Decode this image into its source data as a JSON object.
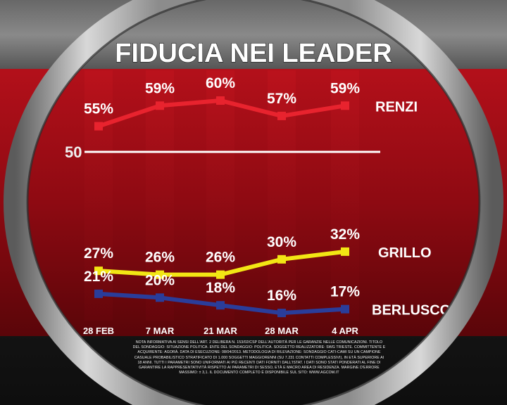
{
  "chart_data": {
    "type": "line",
    "title": "FIDUCIA NEI LEADER",
    "categories": [
      "28 FEB",
      "7 MAR",
      "21 MAR",
      "28 MAR",
      "4 APR"
    ],
    "ylim": [
      0,
      70
    ],
    "reference_line": {
      "value": 50,
      "label": "50"
    },
    "series": [
      {
        "name": "RENZI",
        "values": [
          55,
          59,
          60,
          57,
          59
        ],
        "labels": [
          "55%",
          "59%",
          "60%",
          "57%",
          "59%"
        ],
        "color": "#e8232e"
      },
      {
        "name": "GRILLO",
        "values": [
          27,
          26,
          26,
          30,
          32
        ],
        "labels": [
          "27%",
          "26%",
          "26%",
          "30%",
          "32%"
        ],
        "color": "#f2e614"
      },
      {
        "name": "BERLUSCONI",
        "values": [
          21,
          20,
          18,
          16,
          17
        ],
        "labels": [
          "21%",
          "20%",
          "18%",
          "16%",
          "17%"
        ],
        "color": "#2a3d9a"
      }
    ]
  },
  "footnote": "Nota informativa ai sensi dell'art. 2 delibera n. 153/02/CSP dell'Autorità per le garanzie nelle comunicazioni. Titolo del sondaggio: situazione politica. Ente del sondaggio: Politica. Soggetto realizzatore: SWG Trieste. Committente e acquirente: Agorà. Data di esecuzione: 08/04/2013. Metodologia di rilevazione: sondaggio CATI-CAMI su un campione casuale probabilistico stratificato di 1.000 soggetti maggiorenni (su 7.231 contatti complessivi), in età superiore ai 18 anni. Tutti i parametri sono uniformati ai più recenti dati forniti dall'Istat. I dati sono stati ponderati al fine di garantire la rappresentatività rispetto ai parametri di sesso, età e macro area di residenza. Margine d'errore massimo: ± 3,1. Il documento completo è disponibile sul sito: www.agcom.it"
}
